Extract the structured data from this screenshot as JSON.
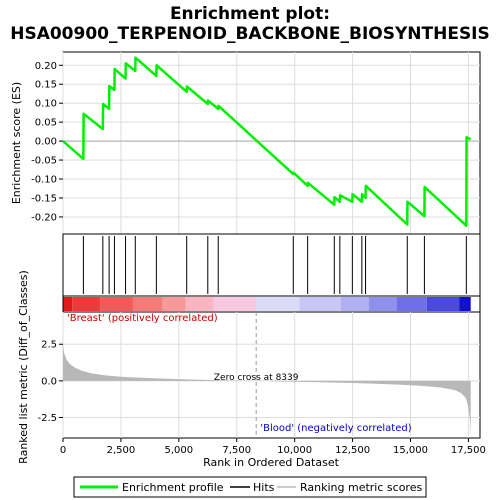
{
  "chart_data": {
    "type": "line",
    "title_line1": "Enrichment plot:",
    "title_line2": "HSA00900_TERPENOID_BACKBONE_BIOSYNTHESIS",
    "colors": {
      "enrichment_line": "#00ee00",
      "hit": "#000000",
      "metric_fill": "#b8b8b8",
      "grid": "#dddddd"
    },
    "x_range": [
      0,
      18000
    ],
    "x_ticks": [
      {
        "value": 0,
        "label": "0"
      },
      {
        "value": 2500,
        "label": "2,500"
      },
      {
        "value": 5000,
        "label": "5,000"
      },
      {
        "value": 7500,
        "label": "7,500"
      },
      {
        "value": 10000,
        "label": "10,000"
      },
      {
        "value": 12500,
        "label": "12,500"
      },
      {
        "value": 15000,
        "label": "15,000"
      },
      {
        "value": 17500,
        "label": "17,500"
      }
    ],
    "es_panel": {
      "ylabel": "Enrichment score (ES)",
      "ylim": [
        -0.245,
        0.235
      ],
      "y_ticks": [
        {
          "value": 0.2,
          "label": "0.20"
        },
        {
          "value": 0.15,
          "label": "0.15"
        },
        {
          "value": 0.1,
          "label": "0.10"
        },
        {
          "value": 0.05,
          "label": "0.05"
        },
        {
          "value": 0.0,
          "label": "0.00"
        },
        {
          "value": -0.05,
          "label": "-0.05"
        },
        {
          "value": -0.1,
          "label": "-0.10"
        },
        {
          "value": -0.15,
          "label": "-0.15"
        },
        {
          "value": -0.2,
          "label": "-0.20"
        }
      ],
      "grid": true,
      "profile": [
        [
          0,
          0.0
        ],
        [
          880,
          -0.047
        ],
        [
          890,
          0.072
        ],
        [
          1720,
          0.032
        ],
        [
          1730,
          0.098
        ],
        [
          1990,
          0.085
        ],
        [
          2000,
          0.145
        ],
        [
          2220,
          0.135
        ],
        [
          2230,
          0.19
        ],
        [
          2700,
          0.165
        ],
        [
          2710,
          0.205
        ],
        [
          3120,
          0.185
        ],
        [
          3130,
          0.22
        ],
        [
          4030,
          0.172
        ],
        [
          4040,
          0.2
        ],
        [
          5340,
          0.13
        ],
        [
          5350,
          0.144
        ],
        [
          6250,
          0.098
        ],
        [
          6260,
          0.107
        ],
        [
          6700,
          0.085
        ],
        [
          6710,
          0.093
        ],
        [
          9940,
          -0.087
        ],
        [
          9950,
          -0.083
        ],
        [
          10560,
          -0.118
        ],
        [
          10570,
          -0.11
        ],
        [
          11710,
          -0.168
        ],
        [
          11720,
          -0.148
        ],
        [
          11950,
          -0.16
        ],
        [
          11960,
          -0.143
        ],
        [
          12490,
          -0.16
        ],
        [
          12500,
          -0.14
        ],
        [
          12900,
          -0.16
        ],
        [
          12910,
          -0.14
        ],
        [
          13060,
          -0.15
        ],
        [
          13070,
          -0.118
        ],
        [
          14860,
          -0.22
        ],
        [
          14870,
          -0.16
        ],
        [
          15600,
          -0.198
        ],
        [
          15610,
          -0.121
        ],
        [
          17410,
          -0.223
        ],
        [
          17420,
          0.01
        ],
        [
          17600,
          0.005
        ]
      ]
    },
    "hits": [
      880,
      1720,
      1990,
      2220,
      2700,
      3120,
      4030,
      5340,
      6250,
      6700,
      9940,
      10560,
      11710,
      11950,
      12490,
      12900,
      13060,
      14860,
      15600,
      17410
    ],
    "color_bar": [
      {
        "from": 0,
        "to": 400,
        "color": "#e31a1c"
      },
      {
        "from": 400,
        "to": 1600,
        "color": "#ee3a3a"
      },
      {
        "from": 1600,
        "to": 3000,
        "color": "#f25a5a"
      },
      {
        "from": 3000,
        "to": 4300,
        "color": "#f57a7a"
      },
      {
        "from": 4300,
        "to": 5300,
        "color": "#f89a9a"
      },
      {
        "from": 5300,
        "to": 6500,
        "color": "#f9b5c2"
      },
      {
        "from": 6500,
        "to": 8339,
        "color": "#f8c8e0"
      },
      {
        "from": 8339,
        "to": 10200,
        "color": "#dcdcf8"
      },
      {
        "from": 10200,
        "to": 12000,
        "color": "#c7c7f5"
      },
      {
        "from": 12000,
        "to": 13200,
        "color": "#afaff1"
      },
      {
        "from": 13200,
        "to": 14400,
        "color": "#8f8fec"
      },
      {
        "from": 14400,
        "to": 15700,
        "color": "#6f6fe6"
      },
      {
        "from": 15700,
        "to": 17100,
        "color": "#4a4add"
      },
      {
        "from": 17100,
        "to": 17600,
        "color": "#1010cc"
      }
    ],
    "metric_panel": {
      "ylabel_line1": "Ranked list metric (Diff_of_Classes)",
      "ylabel_line2": "",
      "xlabel": "Rank in Ordered Dataset",
      "ylim": [
        -3.9,
        4.7
      ],
      "y_ticks": [
        {
          "value": 2.5,
          "label": "2.5"
        },
        {
          "value": 0.0,
          "label": "0.0"
        },
        {
          "value": -2.5,
          "label": "-2.5"
        }
      ],
      "grid": true,
      "zero_cross": 8339,
      "zero_cross_label": "Zero cross at 8339",
      "pos_label": "'Breast' (positively correlated)",
      "neg_label": "'Blood' (negatively correlated)",
      "metric_curve": [
        [
          0,
          2.5
        ],
        [
          50,
          1.9
        ],
        [
          150,
          1.45
        ],
        [
          300,
          1.15
        ],
        [
          500,
          0.92
        ],
        [
          800,
          0.7
        ],
        [
          1200,
          0.52
        ],
        [
          1800,
          0.38
        ],
        [
          2500,
          0.28
        ],
        [
          3500,
          0.2
        ],
        [
          4500,
          0.14
        ],
        [
          5500,
          0.09
        ],
        [
          6500,
          0.05
        ],
        [
          7500,
          0.02
        ],
        [
          8339,
          0.0
        ],
        [
          9500,
          -0.04
        ],
        [
          10500,
          -0.08
        ],
        [
          11500,
          -0.11
        ],
        [
          12500,
          -0.15
        ],
        [
          13500,
          -0.2
        ],
        [
          14500,
          -0.26
        ],
        [
          15500,
          -0.34
        ],
        [
          16300,
          -0.45
        ],
        [
          16900,
          -0.62
        ],
        [
          17200,
          -0.85
        ],
        [
          17400,
          -1.2
        ],
        [
          17500,
          -1.8
        ],
        [
          17560,
          -2.6
        ],
        [
          17600,
          -3.7
        ]
      ]
    },
    "legend": [
      {
        "label": "Enrichment profile"
      },
      {
        "label": "Hits"
      },
      {
        "label": "Ranking metric scores"
      }
    ]
  }
}
